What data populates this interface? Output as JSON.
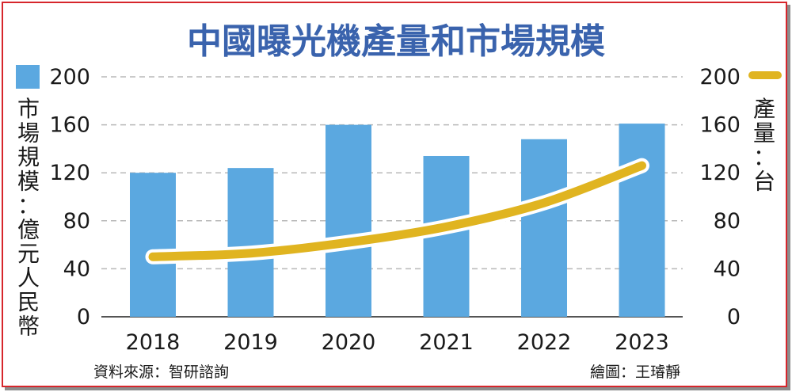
{
  "colors": {
    "bar": "#5ba8e0",
    "line": "#e0b420",
    "title": "#3a63ad",
    "grid": "#b8b8b8",
    "border": "#d6262c"
  },
  "chart_data": {
    "type": "bar",
    "title": "中國曝光機產量和市場規模",
    "categories": [
      "2018",
      "2019",
      "2020",
      "2021",
      "2022",
      "2023"
    ],
    "series": [
      {
        "name": "市場規模：億元人民幣",
        "kind": "bar",
        "axis": "left",
        "values": [
          120,
          124,
          160,
          134,
          148,
          161
        ]
      },
      {
        "name": "產量：台",
        "kind": "line",
        "axis": "right",
        "values": [
          50,
          53,
          62,
          75,
          95,
          126
        ]
      }
    ],
    "ylabel_left": "市場規模：億元人民幣",
    "ylabel_right": "產量：台",
    "yticks": [
      "0",
      "40",
      "80",
      "120",
      "160",
      "200"
    ],
    "ylim": [
      0,
      200
    ],
    "grid": true,
    "legend": "top, beside each axis"
  },
  "footer": {
    "source": "資料來源：智研諮詢",
    "credit": "繪圖：王璿靜"
  }
}
